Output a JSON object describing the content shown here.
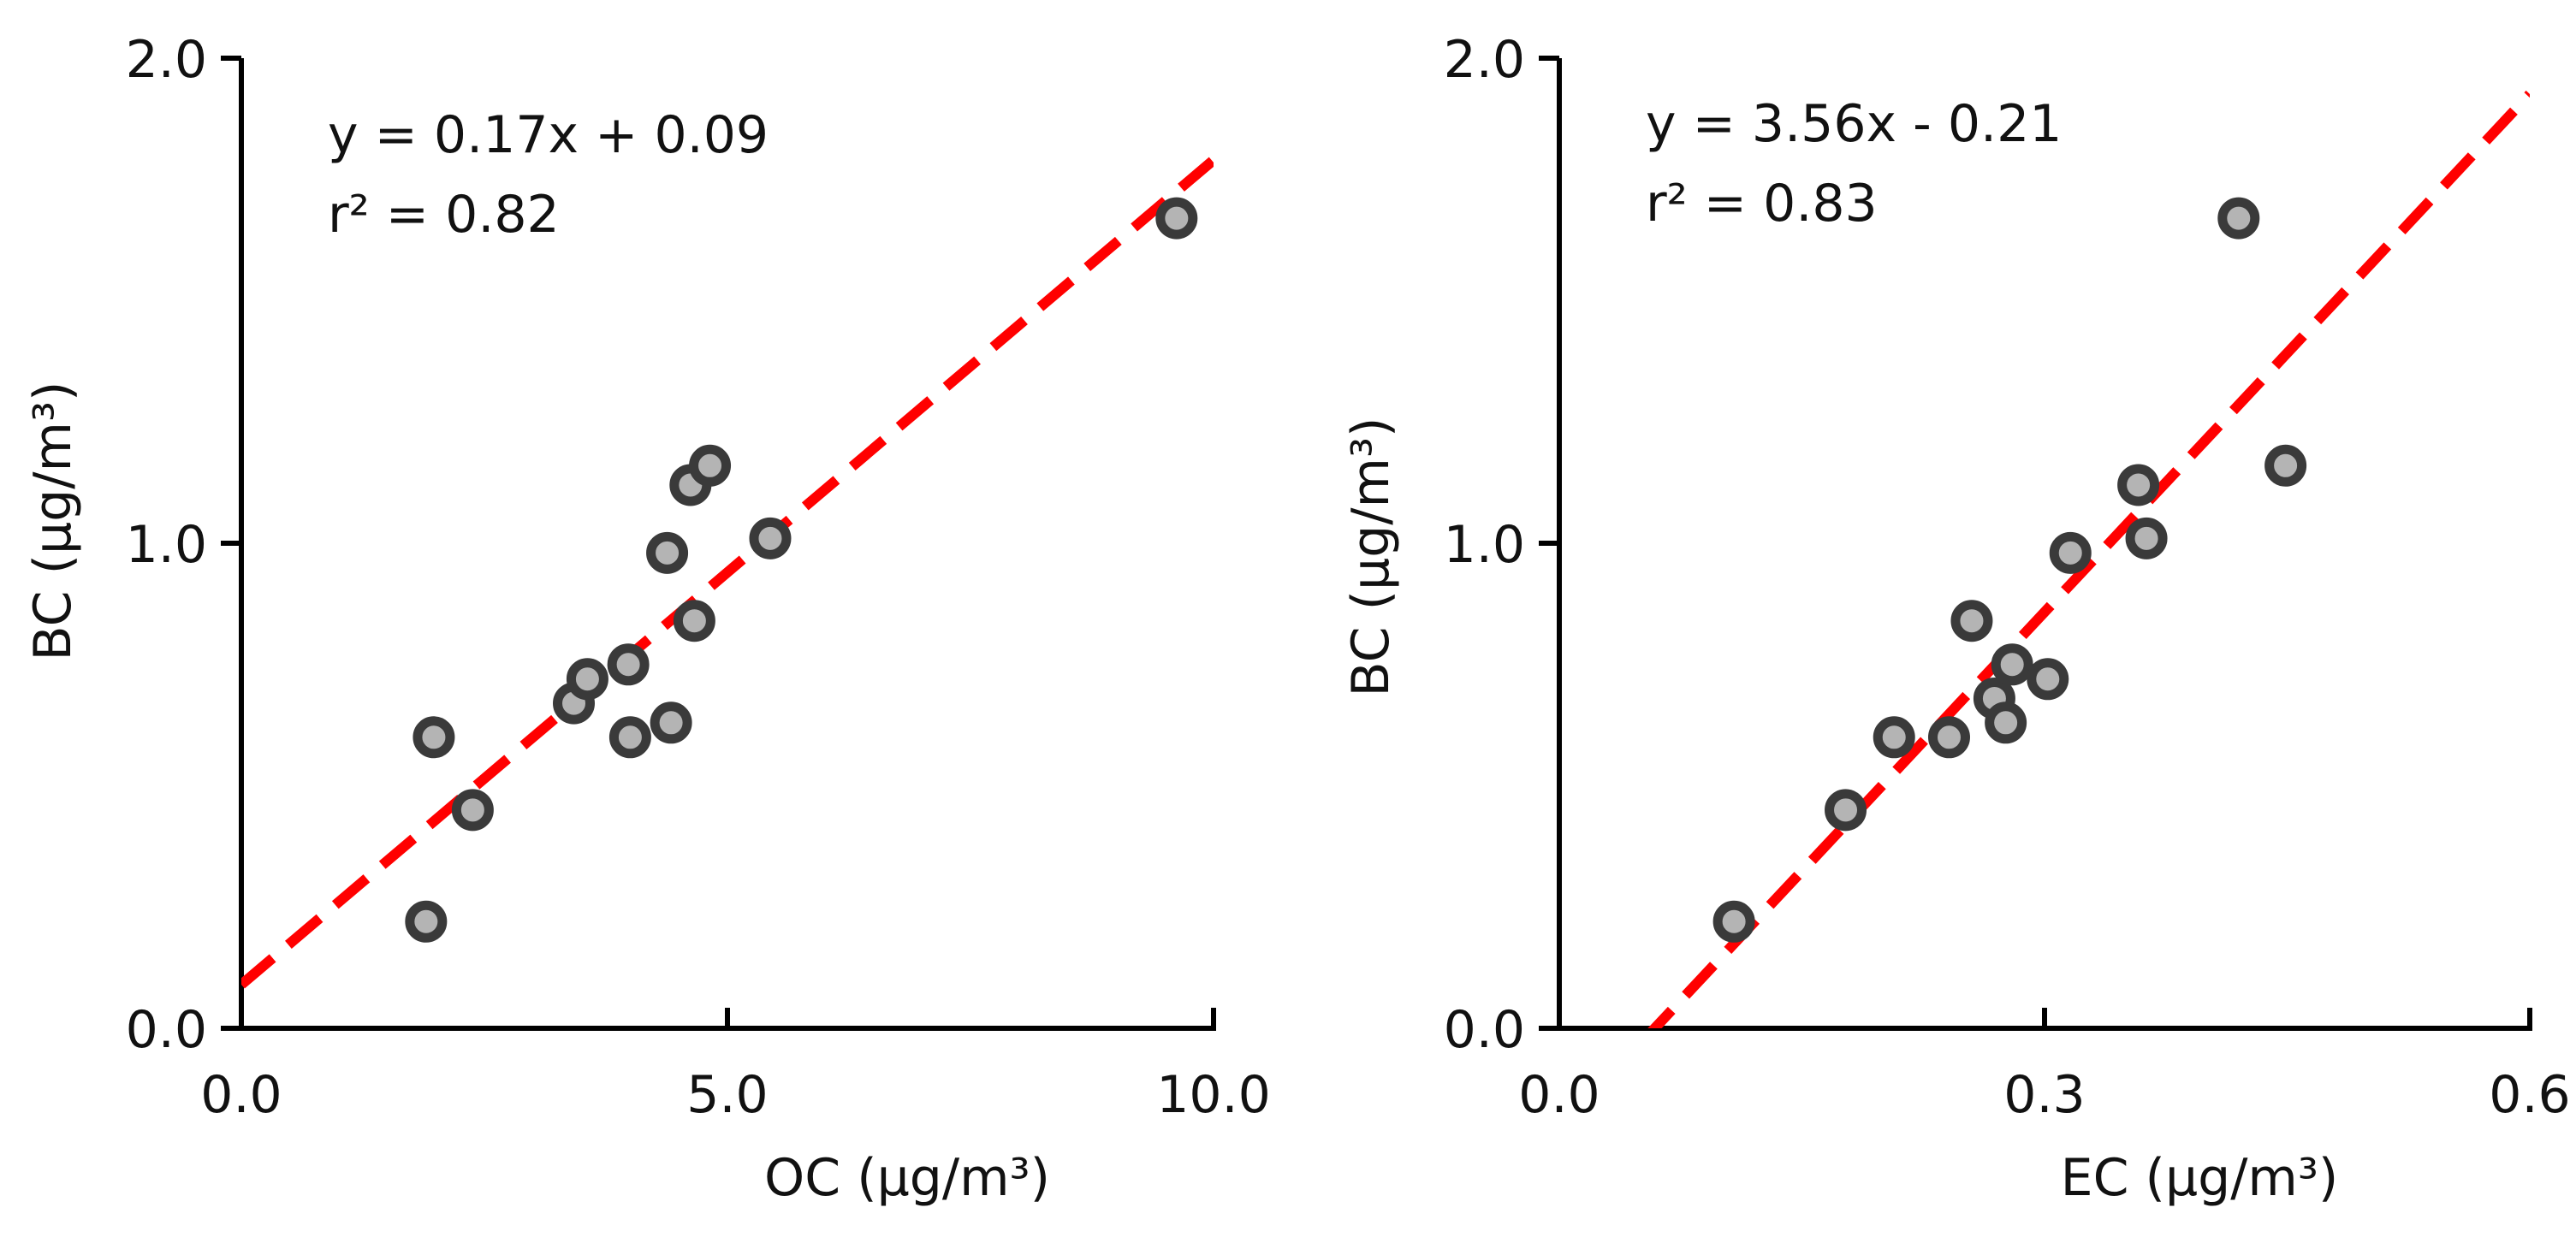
{
  "chart_data": [
    {
      "type": "scatter",
      "xlabel": "OC (µg/m³)",
      "ylabel": "BC (µg/m³)",
      "xlim": [
        0,
        10
      ],
      "ylim": [
        0,
        2
      ],
      "xticks": [
        "0.0",
        "5.0",
        "10.0"
      ],
      "yticks": [
        "0.0",
        "1.0",
        "2.0"
      ],
      "xtick_values": [
        0,
        5,
        10
      ],
      "ytick_values": [
        0,
        1,
        2
      ],
      "equation": "y = 0.17x + 0.09",
      "r2": "r² = 0.82",
      "fit": {
        "slope": 0.17,
        "intercept": 0.09
      },
      "points": [
        [
          1.9,
          0.22
        ],
        [
          1.98,
          0.6
        ],
        [
          2.38,
          0.45
        ],
        [
          3.42,
          0.67
        ],
        [
          3.56,
          0.72
        ],
        [
          3.98,
          0.75
        ],
        [
          4.0,
          0.6
        ],
        [
          4.38,
          0.98
        ],
        [
          4.42,
          0.63
        ],
        [
          4.62,
          1.12
        ],
        [
          4.66,
          0.84
        ],
        [
          4.82,
          1.16
        ],
        [
          5.44,
          1.01
        ],
        [
          9.62,
          1.67
        ]
      ],
      "colors": {
        "marker_fill": "#b4b4b4",
        "marker_edge": "#3a3a3a",
        "fit_line": "#ff0000",
        "axis": "#000000"
      }
    },
    {
      "type": "scatter",
      "xlabel": "EC (µg/m³)",
      "ylabel": "BC (µg/m³)",
      "xlim": [
        0,
        0.6
      ],
      "ylim": [
        0,
        2
      ],
      "xticks": [
        "0.0",
        "0.3",
        "0.6"
      ],
      "yticks": [
        "0.0",
        "1.0",
        "2.0"
      ],
      "xtick_values": [
        0,
        0.3,
        0.6
      ],
      "ytick_values": [
        0,
        1,
        2
      ],
      "equation": "y = 3.56x - 0.21",
      "r2": "r² = 0.83",
      "fit": {
        "slope": 3.56,
        "intercept": -0.21
      },
      "points": [
        [
          0.108,
          0.22
        ],
        [
          0.177,
          0.45
        ],
        [
          0.207,
          0.6
        ],
        [
          0.241,
          0.6
        ],
        [
          0.255,
          0.84
        ],
        [
          0.269,
          0.68
        ],
        [
          0.276,
          0.63
        ],
        [
          0.28,
          0.75
        ],
        [
          0.302,
          0.72
        ],
        [
          0.316,
          0.98
        ],
        [
          0.358,
          1.12
        ],
        [
          0.363,
          1.01
        ],
        [
          0.42,
          1.67
        ],
        [
          0.449,
          1.16
        ]
      ],
      "colors": {
        "marker_fill": "#b4b4b4",
        "marker_edge": "#3a3a3a",
        "fit_line": "#ff0000",
        "axis": "#000000"
      }
    }
  ]
}
